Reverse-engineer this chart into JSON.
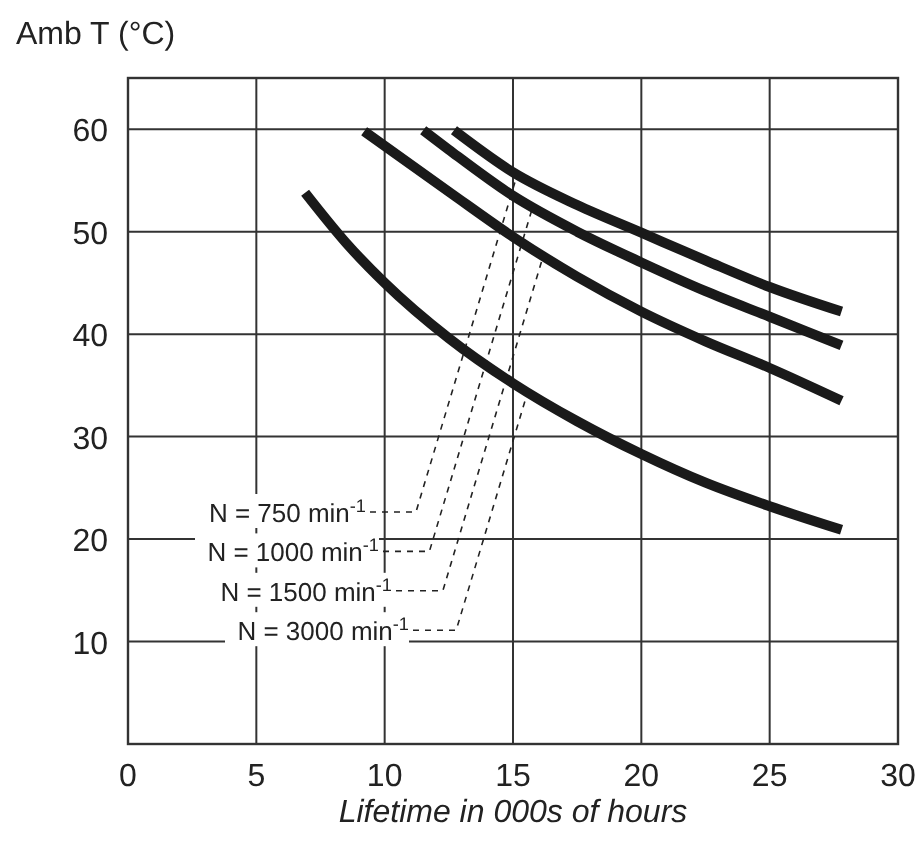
{
  "chart_data": {
    "type": "line",
    "ylabel": "Amb T (°C)",
    "xlabel": "Lifetime in 000s of hours",
    "xlim": [
      0,
      30
    ],
    "xticks": [
      0,
      5,
      10,
      15,
      20,
      25,
      30
    ],
    "ylim": [
      0,
      65
    ],
    "yticks": [
      10,
      20,
      30,
      40,
      50,
      60
    ],
    "grid": true,
    "marker": "none",
    "line_style": "solid",
    "series": [
      {
        "name": "N = 750 min$^{-1}$",
        "color": "#1a1a1a",
        "x": [
          12.7,
          15,
          17.5,
          20,
          22.5,
          25,
          27.8
        ],
        "values": [
          59.9,
          55.8,
          52.6,
          49.9,
          47.2,
          44.6,
          42.2
        ]
      },
      {
        "name": "N = 1000 min$^{-1}$",
        "color": "#1a1a1a",
        "x": [
          11.5,
          12.5,
          15,
          17.5,
          20,
          22.5,
          25,
          27.8
        ],
        "values": [
          59.9,
          58.0,
          53.5,
          50.0,
          47.0,
          44.2,
          41.7,
          38.9
        ]
      },
      {
        "name": "N = 1500 min$^{-1}$",
        "color": "#1a1a1a",
        "x": [
          9.2,
          12.5,
          15,
          17.5,
          20,
          22.5,
          25,
          27.8
        ],
        "values": [
          59.8,
          53.9,
          49.5,
          45.6,
          42.2,
          39.3,
          36.7,
          33.5
        ]
      },
      {
        "name": "N = 3000 min$^{-1}$",
        "color": "#1a1a1a",
        "x": [
          6.9,
          8.5,
          10,
          12.5,
          15,
          17.5,
          20,
          22.5,
          25,
          27.8
        ],
        "values": [
          53.8,
          48.9,
          45.0,
          39.6,
          35.2,
          31.5,
          28.3,
          25.5,
          23.2,
          20.9
        ]
      }
    ]
  }
}
